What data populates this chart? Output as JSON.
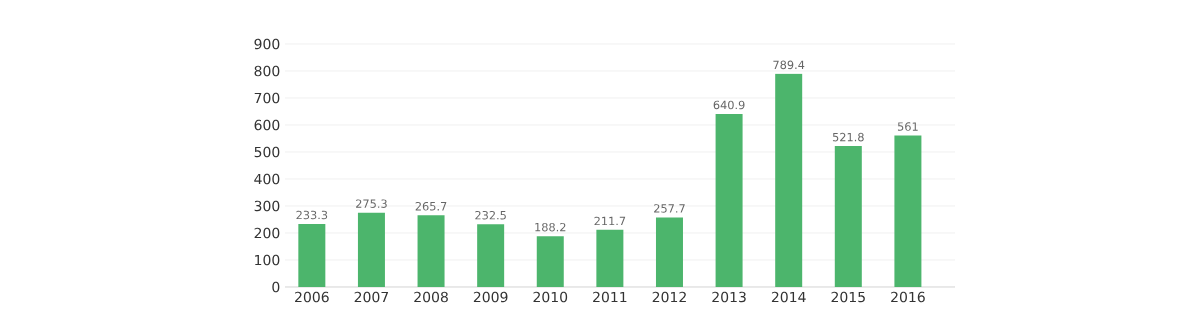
{
  "chart_data": {
    "type": "bar",
    "categories": [
      "2006",
      "2007",
      "2008",
      "2009",
      "2010",
      "2011",
      "2012",
      "2013",
      "2014",
      "2015",
      "2016"
    ],
    "values": [
      233.3,
      275.3,
      265.7,
      232.5,
      188.2,
      211.7,
      257.7,
      640.9,
      789.4,
      521.8,
      561
    ],
    "color": "#4cb56c",
    "ylim": [
      0,
      900
    ],
    "yticks": [
      0,
      100,
      200,
      300,
      400,
      500,
      600,
      700,
      800,
      900
    ],
    "grid": "y",
    "data_labels": true
  }
}
